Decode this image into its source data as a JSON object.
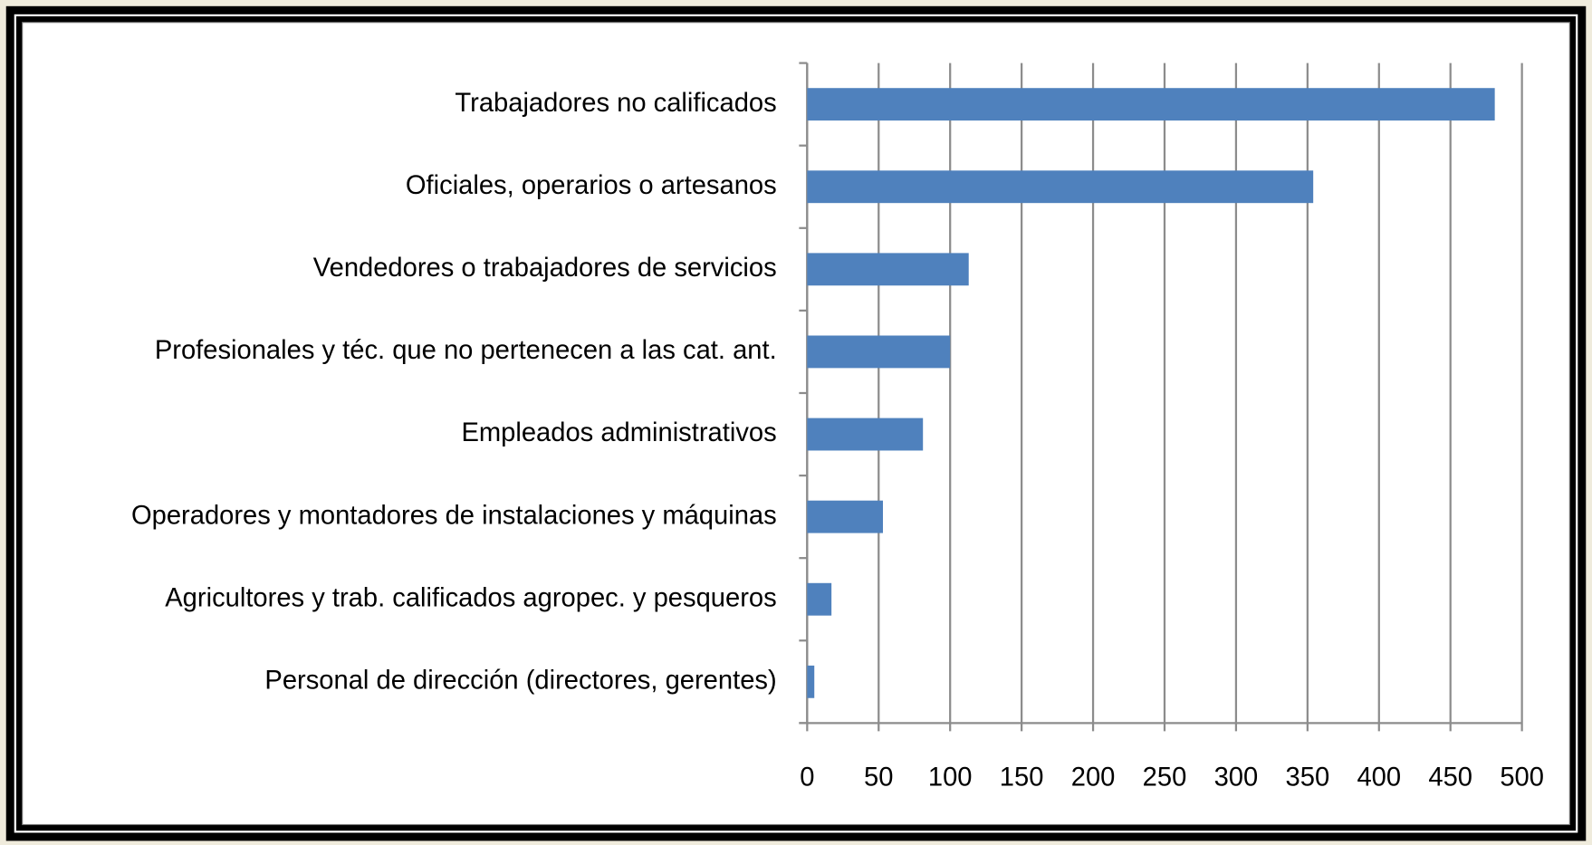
{
  "chart_data": {
    "type": "bar",
    "orientation": "horizontal",
    "categories": [
      "Trabajadores no calificados",
      "Oficiales, operarios o artesanos",
      "Vendedores o trabajadores de servicios",
      "Profesionales y téc. que no pertenecen a las cat.  ant.",
      "Empleados administrativos",
      "Operadores y montadores de instalaciones y máquinas",
      "Agricultores y trab. calificados agropec. y pesqueros",
      "Personal de dirección (directores, gerentes)"
    ],
    "values": [
      481,
      354,
      113,
      100,
      81,
      53,
      17,
      5
    ],
    "color": "#4f81bd",
    "xlim": [
      0,
      500
    ],
    "xticks": [
      0,
      50,
      100,
      150,
      200,
      250,
      300,
      350,
      400,
      450,
      500
    ],
    "grid": true
  }
}
